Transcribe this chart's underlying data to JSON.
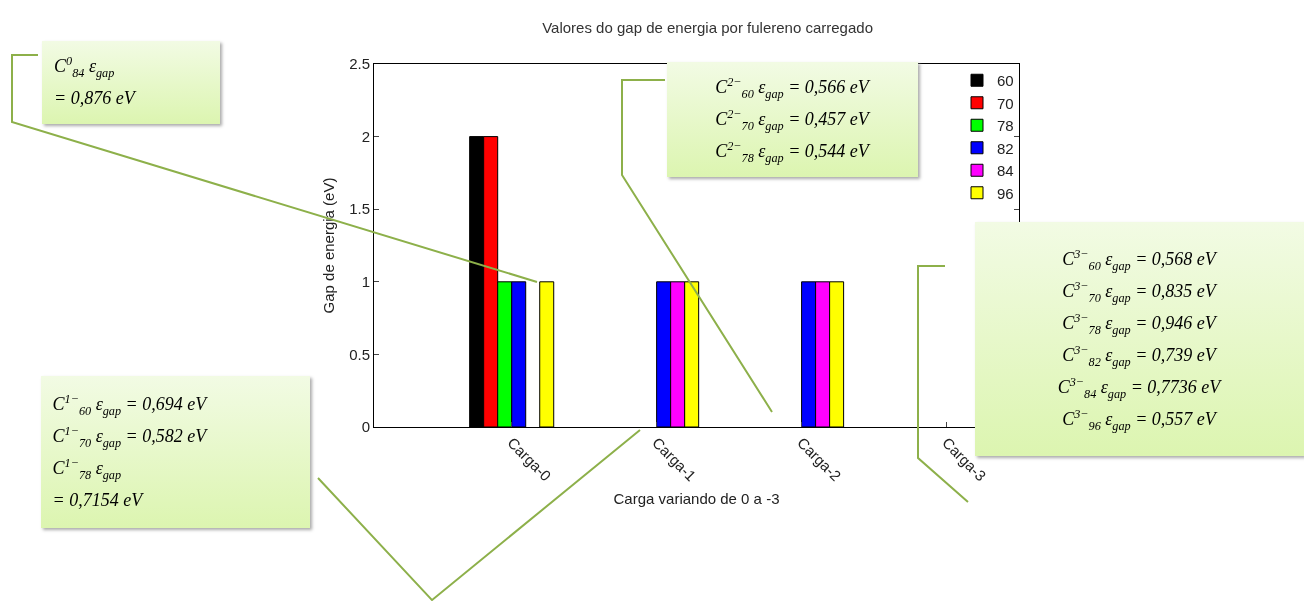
{
  "chart_data": {
    "type": "bar",
    "title": "Valores do gap de energia por fulereno carregado",
    "xlabel": "Carga variando de 0 a -3",
    "ylabel": "Gap de energia (eV)",
    "categories": [
      "Carga-0",
      "Carga-1",
      "Carga-2",
      "Carga-3"
    ],
    "series": [
      {
        "name": "60",
        "color": "#000000",
        "values": [
          2,
          null,
          null,
          null
        ]
      },
      {
        "name": "70",
        "color": "#ff0000",
        "values": [
          2,
          null,
          null,
          null
        ]
      },
      {
        "name": "78",
        "color": "#00ff00",
        "values": [
          1,
          null,
          null,
          null
        ]
      },
      {
        "name": "82",
        "color": "#0000ff",
        "values": [
          1,
          1,
          1,
          null
        ]
      },
      {
        "name": "84",
        "color": "#ff00ff",
        "values": [
          null,
          1,
          1,
          null
        ]
      },
      {
        "name": "96",
        "color": "#ffff00",
        "values": [
          1,
          1,
          1,
          null
        ]
      }
    ],
    "ylim": [
      0,
      2.5
    ],
    "yticks": [
      0,
      0.5,
      1,
      1.5,
      2,
      2.5
    ],
    "grid": false,
    "legend": "top right",
    "annotations": [
      "C$^{0}$$_{84}$ ε$_{gap}$\n= 0,876 eV",
      "C$^{2−}$$_{60}$ ε$_{gap}$ = 0,566 eV\nC$^{2−}$$_{70}$ ε$_{gap}$ = 0,457 eV\nC$^{2−}$$_{78}$ ε$_{gap}$ = 0,544 eV",
      "C$^{3−}$$_{60}$ ε$_{gap}$ = 0,568 eV\nC$^{3−}$$_{70}$ ε$_{gap}$ = 0,835 eV\nC$^{3−}$$_{78}$ ε$_{gap}$ = 0,946 eV\nC$^{3−}$$_{82}$ ε$_{gap}$ = 0,739 eV\nC$^{3−}$$_{84}$ ε$_{gap}$ = 0,7736 eV\nC$^{3−}$$_{96}$ ε$_{gap}$ = 0,557 eV",
      "C$^{1−}$$_{60}$ ε$_{gap}$ = 0,694 eV\nC$^{1−}$$_{70}$ ε$_{gap}$ = 0,582 eV\nC$^{1−}$$_{78}$ ε$_{gap}$\n= 0,7154 eV"
    ]
  }
}
